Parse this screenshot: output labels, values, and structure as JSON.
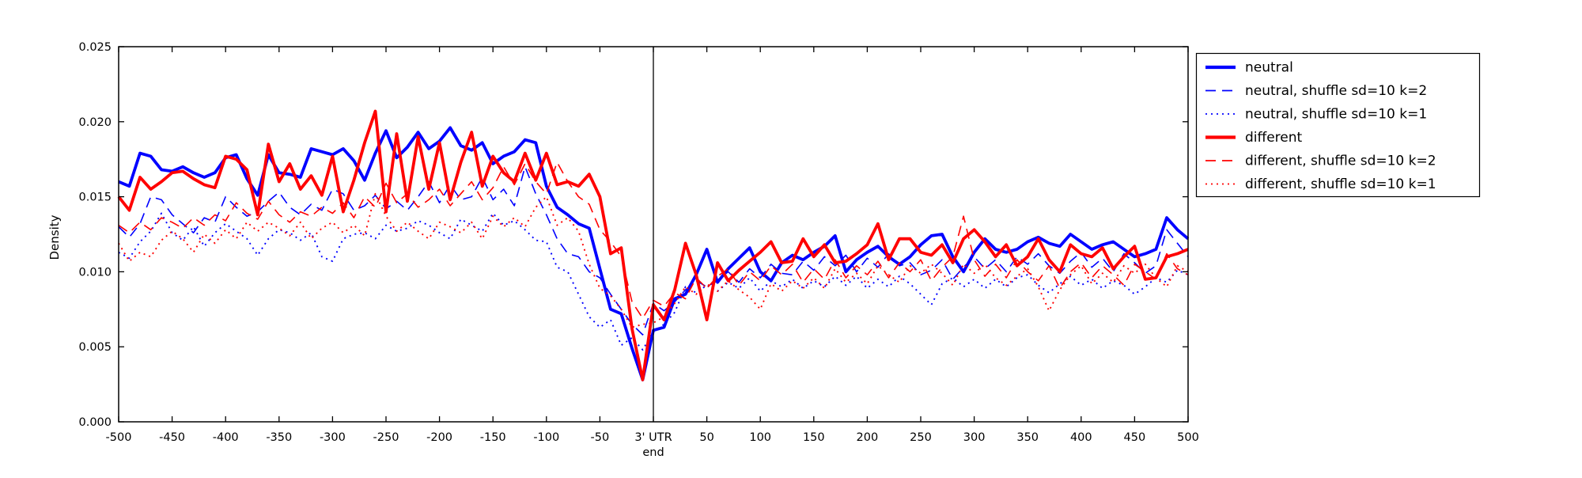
{
  "figure": {
    "background": "#ffffff",
    "axis_color": "#000000",
    "vline_color": "#000000"
  },
  "chart_data": {
    "type": "line",
    "title": "",
    "xlabel": "",
    "ylabel": "Density",
    "xlim": [
      -500,
      500
    ],
    "ylim": [
      0,
      0.025
    ],
    "grid": false,
    "legend_position": "outside-top-right",
    "vline_x": 0,
    "x_ticks": [
      -500,
      -450,
      -400,
      -350,
      -300,
      -250,
      -200,
      -150,
      -100,
      -50,
      0,
      50,
      100,
      150,
      200,
      250,
      300,
      350,
      400,
      450,
      500
    ],
    "x_tick_labels": [
      "-500",
      "-450",
      "-400",
      "-350",
      "-300",
      "-250",
      "-200",
      "-150",
      "-100",
      "-50",
      "3' UTR|end",
      "50",
      "100",
      "150",
      "200",
      "250",
      "300",
      "350",
      "400",
      "450",
      "500"
    ],
    "y_ticks": [
      0,
      0.005,
      0.01,
      0.015,
      0.02,
      0.025
    ],
    "y_tick_labels": [
      "0.000",
      "0.005",
      "0.010",
      "0.015",
      "0.020",
      "0.025"
    ],
    "x": [
      -500,
      -490,
      -480,
      -470,
      -460,
      -450,
      -440,
      -430,
      -420,
      -410,
      -400,
      -390,
      -380,
      -370,
      -360,
      -350,
      -340,
      -330,
      -320,
      -310,
      -300,
      -290,
      -280,
      -270,
      -260,
      -250,
      -240,
      -230,
      -220,
      -210,
      -200,
      -190,
      -180,
      -170,
      -160,
      -150,
      -140,
      -130,
      -120,
      -110,
      -100,
      -90,
      -80,
      -70,
      -60,
      -50,
      -40,
      -30,
      -20,
      -10,
      0,
      10,
      20,
      30,
      40,
      50,
      60,
      70,
      80,
      90,
      100,
      110,
      120,
      130,
      140,
      150,
      160,
      170,
      180,
      190,
      200,
      210,
      220,
      230,
      240,
      250,
      260,
      270,
      280,
      290,
      300,
      310,
      320,
      330,
      340,
      350,
      360,
      370,
      380,
      390,
      400,
      410,
      420,
      430,
      440,
      450,
      460,
      470,
      480,
      490,
      500
    ],
    "series": [
      {
        "name": "neutral",
        "color": "#0000ff",
        "style": "solid",
        "thick": true,
        "values": [
          0.016,
          0.0157,
          0.0179,
          0.0177,
          0.0168,
          0.0167,
          0.017,
          0.0166,
          0.0163,
          0.0166,
          0.0176,
          0.0178,
          0.0162,
          0.0151,
          0.0178,
          0.0166,
          0.0165,
          0.0163,
          0.0182,
          0.018,
          0.0178,
          0.0182,
          0.0174,
          0.0161,
          0.0179,
          0.0194,
          0.0176,
          0.0183,
          0.0193,
          0.0182,
          0.0187,
          0.0196,
          0.0184,
          0.0181,
          0.0186,
          0.0172,
          0.0177,
          0.018,
          0.0188,
          0.0186,
          0.0157,
          0.0143,
          0.0138,
          0.0132,
          0.0129,
          0.0102,
          0.0075,
          0.0072,
          0.0049,
          0.0028,
          0.0061,
          0.0063,
          0.0082,
          0.0085,
          0.0098,
          0.0115,
          0.0093,
          0.0102,
          0.0109,
          0.0116,
          0.01,
          0.0094,
          0.0106,
          0.0111,
          0.0108,
          0.0113,
          0.0117,
          0.0124,
          0.01,
          0.0108,
          0.0113,
          0.0117,
          0.011,
          0.0105,
          0.011,
          0.0118,
          0.0124,
          0.0125,
          0.011,
          0.01,
          0.0113,
          0.0122,
          0.0115,
          0.0113,
          0.0115,
          0.012,
          0.0123,
          0.0119,
          0.0117,
          0.0125,
          0.012,
          0.0115,
          0.0118,
          0.012,
          0.0115,
          0.011,
          0.0112,
          0.0115,
          0.0136,
          0.0128,
          0.0122
        ]
      },
      {
        "name": "neutral, shuffle sd=10 k=2",
        "color": "#0000ff",
        "style": "dashed",
        "thick": false,
        "values": [
          0.013,
          0.0123,
          0.0132,
          0.015,
          0.0148,
          0.0138,
          0.0132,
          0.0126,
          0.0136,
          0.0133,
          0.015,
          0.0143,
          0.0137,
          0.014,
          0.0147,
          0.0153,
          0.0143,
          0.0138,
          0.0145,
          0.0141,
          0.0155,
          0.0152,
          0.0141,
          0.0144,
          0.0151,
          0.0142,
          0.0147,
          0.0141,
          0.015,
          0.016,
          0.0146,
          0.0158,
          0.0148,
          0.015,
          0.0163,
          0.0148,
          0.0155,
          0.0144,
          0.017,
          0.0152,
          0.0138,
          0.0122,
          0.0112,
          0.011,
          0.01,
          0.0096,
          0.0085,
          0.0075,
          0.0065,
          0.0058,
          0.0079,
          0.0074,
          0.008,
          0.0088,
          0.0094,
          0.009,
          0.0094,
          0.01,
          0.0093,
          0.0102,
          0.0096,
          0.0105,
          0.0099,
          0.0098,
          0.0107,
          0.0101,
          0.011,
          0.0104,
          0.0111,
          0.01,
          0.0109,
          0.0103,
          0.0112,
          0.0104,
          0.0106,
          0.0098,
          0.0101,
          0.0108,
          0.0095,
          0.0103,
          0.011,
          0.0102,
          0.0108,
          0.01,
          0.011,
          0.0105,
          0.0112,
          0.0104,
          0.0099,
          0.0107,
          0.0113,
          0.0103,
          0.0109,
          0.01,
          0.0112,
          0.0106,
          0.0099,
          0.0104,
          0.0128,
          0.0119,
          0.011
        ]
      },
      {
        "name": "neutral, shuffle sd=10 k=1",
        "color": "#0000ff",
        "style": "dotted",
        "thick": false,
        "values": [
          0.0113,
          0.0109,
          0.012,
          0.0127,
          0.0139,
          0.0126,
          0.0121,
          0.013,
          0.0117,
          0.0126,
          0.0132,
          0.0127,
          0.0122,
          0.0111,
          0.0122,
          0.0128,
          0.0126,
          0.0121,
          0.0126,
          0.011,
          0.0107,
          0.0122,
          0.0125,
          0.0126,
          0.0122,
          0.0131,
          0.0127,
          0.0129,
          0.0134,
          0.0131,
          0.0126,
          0.0122,
          0.0135,
          0.0131,
          0.0127,
          0.0139,
          0.0131,
          0.0134,
          0.0128,
          0.0121,
          0.012,
          0.0103,
          0.01,
          0.0085,
          0.007,
          0.0063,
          0.0068,
          0.0051,
          0.0056,
          0.0048,
          0.006,
          0.0065,
          0.0073,
          0.009,
          0.0086,
          0.0091,
          0.0087,
          0.0093,
          0.0089,
          0.0096,
          0.0087,
          0.0094,
          0.009,
          0.0095,
          0.0089,
          0.0094,
          0.009,
          0.0097,
          0.0091,
          0.0097,
          0.0089,
          0.0095,
          0.009,
          0.0097,
          0.0092,
          0.0085,
          0.0078,
          0.0092,
          0.0096,
          0.009,
          0.0095,
          0.0089,
          0.0095,
          0.009,
          0.0096,
          0.0098,
          0.0091,
          0.0086,
          0.0092,
          0.0097,
          0.0091,
          0.0095,
          0.0089,
          0.0094,
          0.0091,
          0.0085,
          0.009,
          0.0096,
          0.0093,
          0.0101,
          0.0098
        ]
      },
      {
        "name": "different",
        "color": "#ff0000",
        "style": "solid",
        "thick": true,
        "values": [
          0.015,
          0.0141,
          0.0163,
          0.0155,
          0.016,
          0.0166,
          0.0167,
          0.0162,
          0.0158,
          0.0156,
          0.0177,
          0.0175,
          0.0168,
          0.0138,
          0.0185,
          0.016,
          0.0172,
          0.0155,
          0.0164,
          0.0151,
          0.0177,
          0.014,
          0.0161,
          0.0186,
          0.0207,
          0.014,
          0.0192,
          0.0147,
          0.019,
          0.0155,
          0.0186,
          0.0148,
          0.0173,
          0.0193,
          0.0157,
          0.0177,
          0.0166,
          0.016,
          0.0179,
          0.0161,
          0.0179,
          0.0158,
          0.016,
          0.0157,
          0.0165,
          0.015,
          0.0112,
          0.0116,
          0.0062,
          0.0028,
          0.0078,
          0.0068,
          0.0088,
          0.0119,
          0.0098,
          0.0068,
          0.0106,
          0.0094,
          0.0101,
          0.0107,
          0.0113,
          0.012,
          0.0106,
          0.0107,
          0.0122,
          0.011,
          0.0118,
          0.0106,
          0.0107,
          0.0112,
          0.0118,
          0.0132,
          0.0108,
          0.0122,
          0.0122,
          0.0113,
          0.0111,
          0.0118,
          0.0106,
          0.0122,
          0.0128,
          0.012,
          0.011,
          0.0118,
          0.0104,
          0.011,
          0.0122,
          0.0108,
          0.01,
          0.0118,
          0.0112,
          0.011,
          0.0116,
          0.0102,
          0.011,
          0.0117,
          0.0095,
          0.0096,
          0.011,
          0.0112,
          0.0115
        ]
      },
      {
        "name": "different, shuffle sd=10 k=2",
        "color": "#ff0000",
        "style": "dashed",
        "thick": false,
        "values": [
          0.0131,
          0.0126,
          0.0133,
          0.0128,
          0.0136,
          0.0133,
          0.0129,
          0.0136,
          0.0131,
          0.0138,
          0.0134,
          0.0146,
          0.0139,
          0.0135,
          0.0147,
          0.0138,
          0.0133,
          0.014,
          0.0137,
          0.0143,
          0.0139,
          0.0146,
          0.0136,
          0.015,
          0.0143,
          0.0159,
          0.0146,
          0.0152,
          0.0143,
          0.0148,
          0.0155,
          0.0144,
          0.0152,
          0.016,
          0.0148,
          0.0156,
          0.017,
          0.0158,
          0.0172,
          0.016,
          0.0152,
          0.0173,
          0.016,
          0.015,
          0.0145,
          0.0128,
          0.012,
          0.011,
          0.008,
          0.0069,
          0.0081,
          0.0077,
          0.0086,
          0.0082,
          0.0096,
          0.0089,
          0.0097,
          0.0102,
          0.0091,
          0.01,
          0.0094,
          0.0104,
          0.0098,
          0.0105,
          0.0093,
          0.0102,
          0.0095,
          0.0108,
          0.0096,
          0.0104,
          0.0098,
          0.0107,
          0.0096,
          0.0106,
          0.01,
          0.0108,
          0.0094,
          0.0103,
          0.011,
          0.0137,
          0.0108,
          0.0097,
          0.0105,
          0.0096,
          0.0108,
          0.01,
          0.0094,
          0.0104,
          0.0089,
          0.01,
          0.0106,
          0.0096,
          0.0104,
          0.0098,
          0.0091,
          0.0105,
          0.01,
          0.0095,
          0.0112,
          0.0102,
          0.0098
        ]
      },
      {
        "name": "different, shuffle sd=10 k=1",
        "color": "#ff0000",
        "style": "dotted",
        "thick": false,
        "values": [
          0.0119,
          0.0107,
          0.0113,
          0.011,
          0.0121,
          0.0127,
          0.0122,
          0.0113,
          0.0125,
          0.0119,
          0.0128,
          0.0122,
          0.0133,
          0.0127,
          0.0133,
          0.0129,
          0.0124,
          0.0133,
          0.0122,
          0.0129,
          0.0133,
          0.0126,
          0.0131,
          0.0124,
          0.0152,
          0.0137,
          0.0127,
          0.0133,
          0.0127,
          0.0122,
          0.0133,
          0.013,
          0.0126,
          0.0133,
          0.0122,
          0.0137,
          0.013,
          0.0136,
          0.013,
          0.0143,
          0.015,
          0.0131,
          0.0136,
          0.0127,
          0.0105,
          0.0089,
          0.0084,
          0.0075,
          0.0063,
          0.0065,
          0.0066,
          0.007,
          0.0079,
          0.009,
          0.0085,
          0.0092,
          0.0087,
          0.0094,
          0.0088,
          0.0083,
          0.0075,
          0.0092,
          0.0087,
          0.0094,
          0.0089,
          0.0096,
          0.0089,
          0.0102,
          0.0093,
          0.0099,
          0.0092,
          0.0104,
          0.0098,
          0.0093,
          0.0104,
          0.0099,
          0.0105,
          0.0099,
          0.0091,
          0.0105,
          0.0099,
          0.0105,
          0.0096,
          0.0091,
          0.0097,
          0.0102,
          0.009,
          0.0074,
          0.0088,
          0.0098,
          0.0104,
          0.0092,
          0.0099,
          0.0093,
          0.0104,
          0.0099,
          0.0105,
          0.0096,
          0.009,
          0.0104,
          0.01
        ]
      }
    ]
  }
}
